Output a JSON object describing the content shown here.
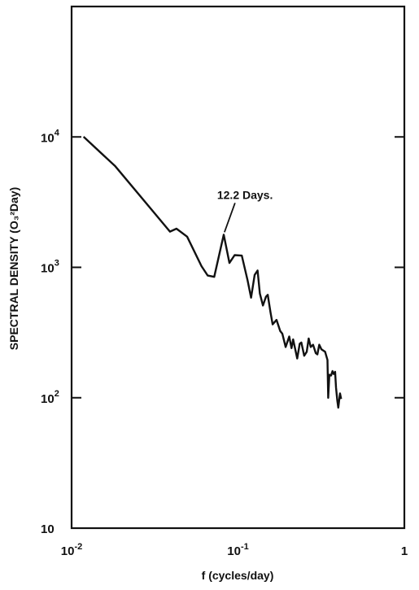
{
  "chart_data": {
    "type": "line",
    "xlabel": "f (cycles/day)",
    "ylabel": "SPECTRAL DENSITY (O₃²Day)",
    "xscale": "log",
    "yscale": "log",
    "xlim": [
      0.01,
      1
    ],
    "ylim": [
      10,
      100000
    ],
    "grid": false,
    "x_ticks": [
      {
        "value": 0.01,
        "base": "10",
        "exp": "-2"
      },
      {
        "value": 0.1,
        "base": "10",
        "exp": "-1"
      },
      {
        "value": 1,
        "base": "1",
        "exp": ""
      }
    ],
    "y_ticks": [
      {
        "value": 10,
        "base": "10",
        "exp": ""
      },
      {
        "value": 100,
        "base": "10",
        "exp": "2"
      },
      {
        "value": 1000,
        "base": "10",
        "exp": "3"
      },
      {
        "value": 10000,
        "base": "10",
        "exp": "4"
      }
    ],
    "annotations": [
      {
        "text": "12.2 Days.",
        "x": 0.082,
        "y": 1780
      }
    ],
    "series": [
      {
        "x": [
          0.0118,
          0.0183,
          0.039,
          0.0427,
          0.0495,
          0.0604,
          0.0658,
          0.072,
          0.0821,
          0.0888,
          0.0955,
          0.1054,
          0.1141,
          0.1199,
          0.1259,
          0.1312,
          0.1353,
          0.1413,
          0.1473,
          0.151,
          0.1567,
          0.1616,
          0.1706,
          0.1793,
          0.1848,
          0.1934,
          0.2033,
          0.2098,
          0.2146,
          0.227,
          0.235,
          0.2404,
          0.2502,
          0.2588,
          0.266,
          0.2735,
          0.2828,
          0.2935,
          0.3,
          0.3078,
          0.3174,
          0.3338,
          0.3452,
          0.3484,
          0.3543,
          0.3626,
          0.37,
          0.376,
          0.3835,
          0.3884,
          0.3955,
          0.4007,
          0.4102,
          0.4168
        ],
        "y": [
          10030,
          5960,
          1880,
          1980,
          1720,
          1020,
          865,
          845,
          1780,
          1080,
          1240,
          1230,
          800,
          585,
          875,
          945,
          630,
          510,
          595,
          615,
          455,
          365,
          395,
          325,
          310,
          245,
          295,
          240,
          280,
          200,
          260,
          265,
          210,
          225,
          285,
          245,
          255,
          220,
          215,
          255,
          235,
          225,
          195,
          100,
          150,
          148,
          160,
          152,
          158,
          120,
          95,
          84,
          108,
          98
        ]
      }
    ]
  }
}
